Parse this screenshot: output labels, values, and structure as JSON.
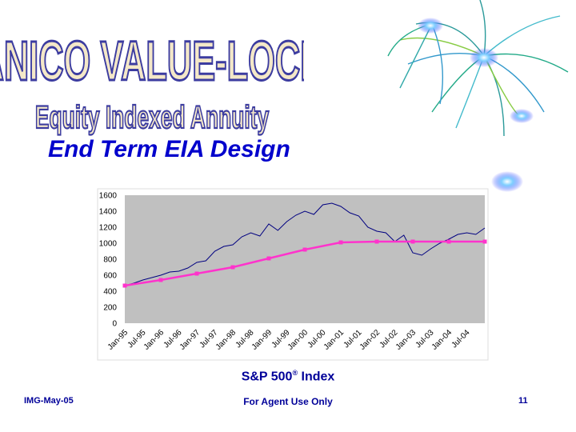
{
  "logo": {
    "title": "ANICO VALUE-LOCK",
    "subtitle": "Equity Indexed Annuity"
  },
  "heading": "End Term EIA Design",
  "caption": {
    "text": "S&P 500",
    "mark": "®",
    "suffix": " Index"
  },
  "footer": {
    "left": "IMG-May-05",
    "center": "For Agent Use Only",
    "right": "11"
  },
  "colors": {
    "title_fill": "#f4e8c8",
    "title_stroke": "#3c3ca0",
    "heading": "#0000cc",
    "plot_bg": "#c0c0c0",
    "index_line": "#000080",
    "lock_line": "#ff33cc"
  },
  "chart_data": {
    "type": "line",
    "grid": false,
    "ylim": [
      0,
      1600
    ],
    "yticks": [
      0,
      200,
      400,
      600,
      800,
      1000,
      1200,
      1400,
      1600
    ],
    "xticks": [
      "Jan-95",
      "Jul-95",
      "Jan-96",
      "Jul-96",
      "Jan-97",
      "Jul-97",
      "Jan-98",
      "Jul-98",
      "Jan-99",
      "Jul-99",
      "Jan-00",
      "Jul-00",
      "Jan-01",
      "Jul-01",
      "Jan-02",
      "Jul-02",
      "Jan-03",
      "Jul-03",
      "Jan-04",
      "Jul-04"
    ],
    "xrange": [
      0,
      20
    ],
    "series": [
      {
        "values_x": [
          0,
          0.5,
          1,
          1.5,
          2,
          2.5,
          3,
          3.5,
          4,
          4.5,
          5,
          5.5,
          6,
          6.5,
          7,
          7.5,
          8,
          8.5,
          9,
          9.5,
          10,
          10.5,
          11,
          11.5,
          12,
          12.5,
          13,
          13.5,
          14,
          14.5,
          15,
          15.5,
          16,
          16.5,
          17,
          17.5,
          18,
          18.5,
          19,
          19.5,
          20
        ],
        "values_y": [
          470,
          500,
          540,
          570,
          600,
          640,
          650,
          690,
          760,
          780,
          900,
          960,
          980,
          1080,
          1130,
          1090,
          1240,
          1160,
          1270,
          1350,
          1400,
          1360,
          1480,
          1500,
          1460,
          1380,
          1340,
          1200,
          1150,
          1130,
          1020,
          1100,
          880,
          850,
          930,
          1000,
          1050,
          1110,
          1130,
          1110,
          1190
        ]
      },
      {
        "values_x": [
          0,
          2,
          4,
          6,
          8,
          10,
          12,
          14,
          16,
          18,
          20
        ],
        "values_y": [
          470,
          540,
          620,
          700,
          810,
          920,
          1010,
          1020,
          1020,
          1020,
          1020
        ]
      }
    ]
  }
}
